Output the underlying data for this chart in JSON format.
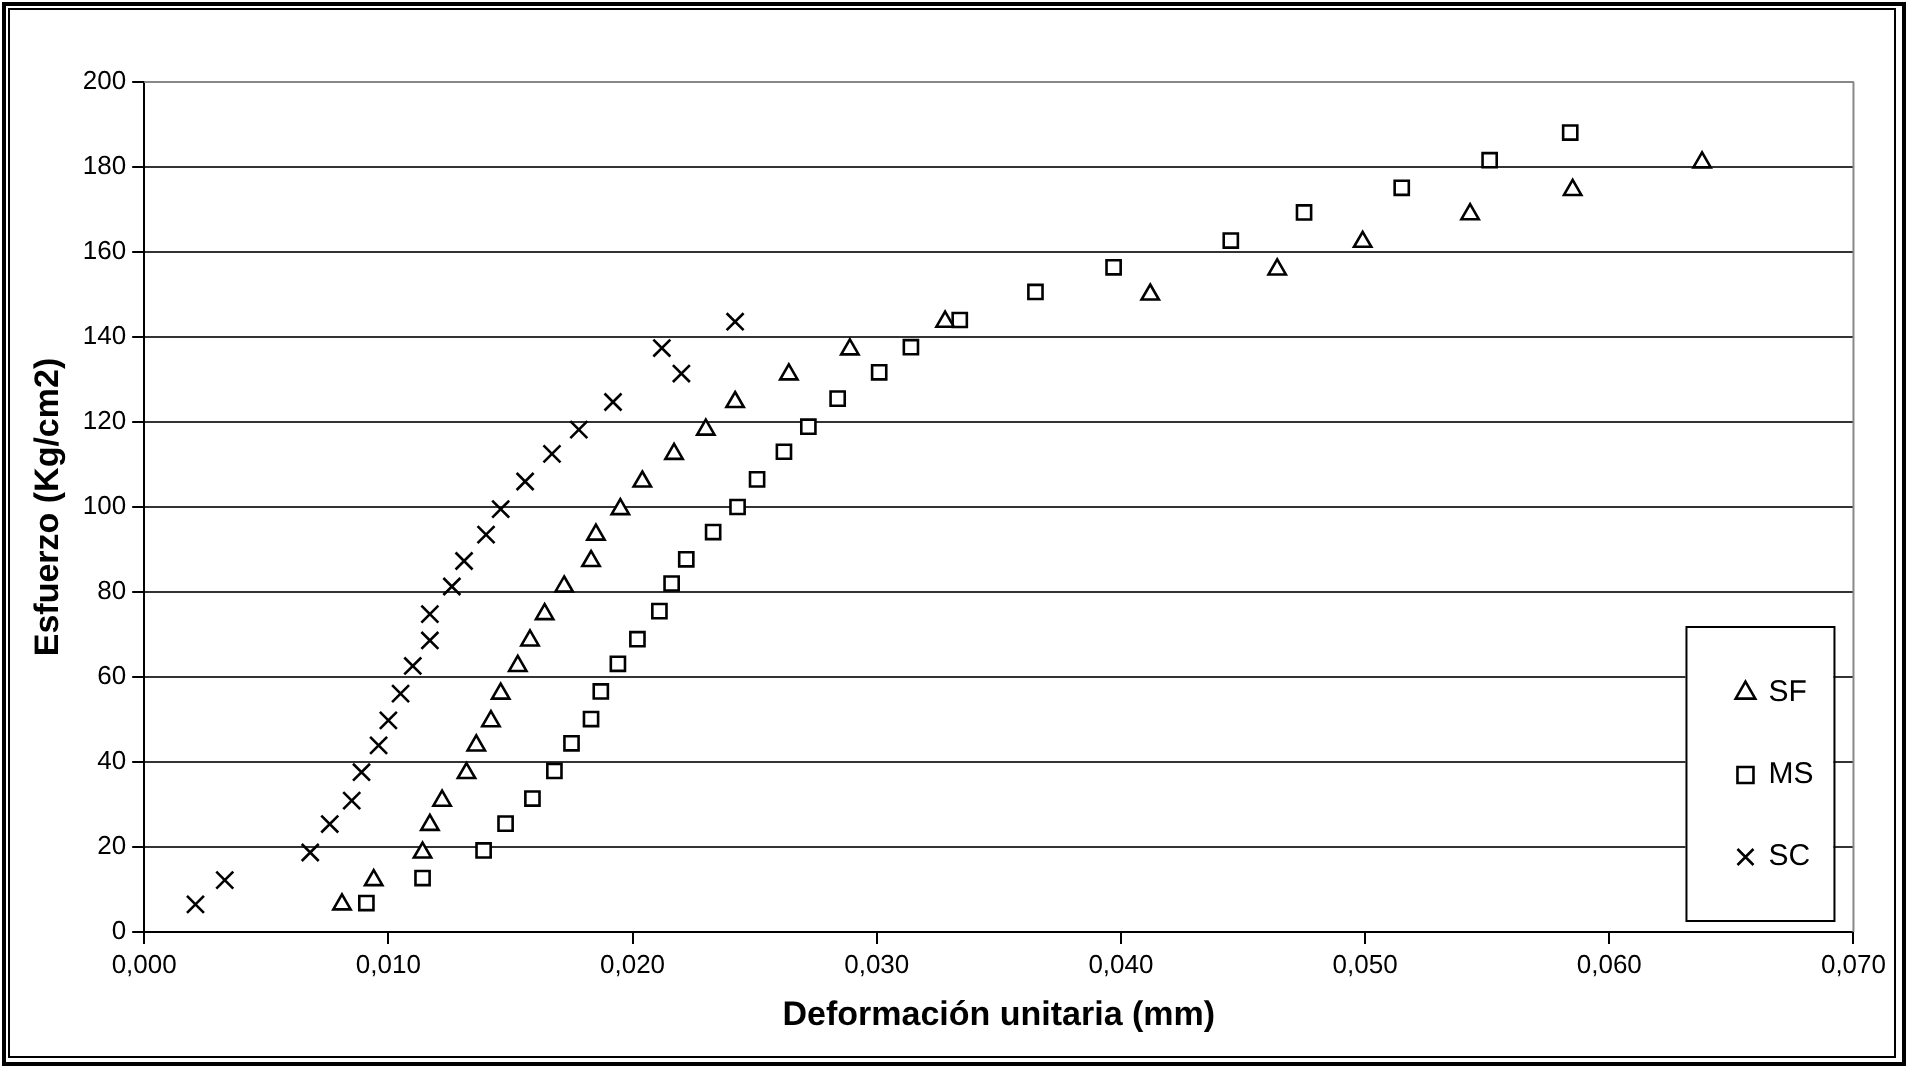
{
  "chart_data": {
    "type": "scatter",
    "xlabel": "Deformación unitaria (mm)",
    "ylabel": "Esfuerzo (Kg/cm2)",
    "xlim": [
      0,
      0.07
    ],
    "xticks": [
      {
        "value": 0,
        "label": "0,000"
      },
      {
        "value": 0.01,
        "label": "0,010"
      },
      {
        "value": 0.02,
        "label": "0,020"
      },
      {
        "value": 0.03,
        "label": "0,030"
      },
      {
        "value": 0.04,
        "label": "0,040"
      },
      {
        "value": 0.05,
        "label": "0,050"
      },
      {
        "value": 0.06,
        "label": "0,060"
      },
      {
        "value": 0.07,
        "label": "0,070"
      }
    ],
    "ylim": [
      0,
      200
    ],
    "yticks": [
      0,
      20,
      40,
      60,
      80,
      100,
      120,
      140,
      160,
      180,
      200
    ],
    "grid": "y",
    "legend": "bottom right",
    "series": [
      {
        "name": "SF",
        "color": "#000000",
        "marker": "triangle",
        "x": [
          0.0081,
          0.0094,
          0.0114,
          0.0117,
          0.0122,
          0.0132,
          0.0136,
          0.0142,
          0.0146,
          0.0153,
          0.0158,
          0.0164,
          0.0172,
          0.0183,
          0.0185,
          0.0195,
          0.0204,
          0.0217,
          0.023,
          0.0242,
          0.0264,
          0.0289,
          0.0328,
          0.0412,
          0.0464,
          0.0499,
          0.0543,
          0.0585,
          0.0638
        ],
        "values": [
          6.5,
          12.2,
          18.7,
          25.2,
          30.9,
          37.4,
          43.9,
          49.6,
          56.1,
          62.6,
          68.6,
          74.8,
          81.3,
          87.3,
          93.5,
          99.5,
          106.0,
          112.5,
          118.2,
          124.7,
          131.2,
          137.1,
          143.6,
          150.0,
          155.9,
          162.4,
          168.9,
          174.6,
          181.1
        ]
      },
      {
        "name": "MS",
        "color": "#000000",
        "marker": "square",
        "x": [
          0.0091,
          0.0114,
          0.0139,
          0.0148,
          0.0159,
          0.0168,
          0.0175,
          0.0183,
          0.0187,
          0.0194,
          0.0202,
          0.0211,
          0.0216,
          0.0222,
          0.0233,
          0.0243,
          0.0251,
          0.0262,
          0.0272,
          0.0284,
          0.0301,
          0.0314,
          0.0334,
          0.0365,
          0.0397,
          0.0445,
          0.0475,
          0.0515,
          0.0551,
          0.0584
        ],
        "values": [
          6.8,
          12.7,
          19.2,
          25.5,
          31.4,
          37.9,
          44.4,
          50.1,
          56.6,
          63.1,
          68.9,
          75.5,
          82.0,
          87.7,
          94.1,
          100.0,
          106.5,
          113.0,
          118.9,
          125.5,
          131.7,
          137.6,
          144.0,
          150.6,
          156.4,
          162.7,
          169.3,
          175.1,
          181.6,
          188.1
        ]
      },
      {
        "name": "SC",
        "color": "#000000",
        "marker": "cross",
        "x": [
          0.0021,
          0.0033,
          0.0068,
          0.0076,
          0.0085,
          0.0089,
          0.0096,
          0.01,
          0.0105,
          0.011,
          0.0117,
          0.0117,
          0.0126,
          0.0131,
          0.014,
          0.0146,
          0.0156,
          0.0167,
          0.0178,
          0.0192,
          0.0212,
          0.022,
          0.0242
        ],
        "values": [
          6.5,
          12.2,
          18.7,
          25.4,
          30.9,
          37.6,
          43.9,
          49.8,
          56.1,
          62.6,
          68.6,
          74.8,
          81.3,
          87.3,
          93.5,
          99.5,
          106.0,
          112.5,
          118.2,
          124.7,
          137.4,
          131.4,
          143.6
        ]
      }
    ]
  }
}
